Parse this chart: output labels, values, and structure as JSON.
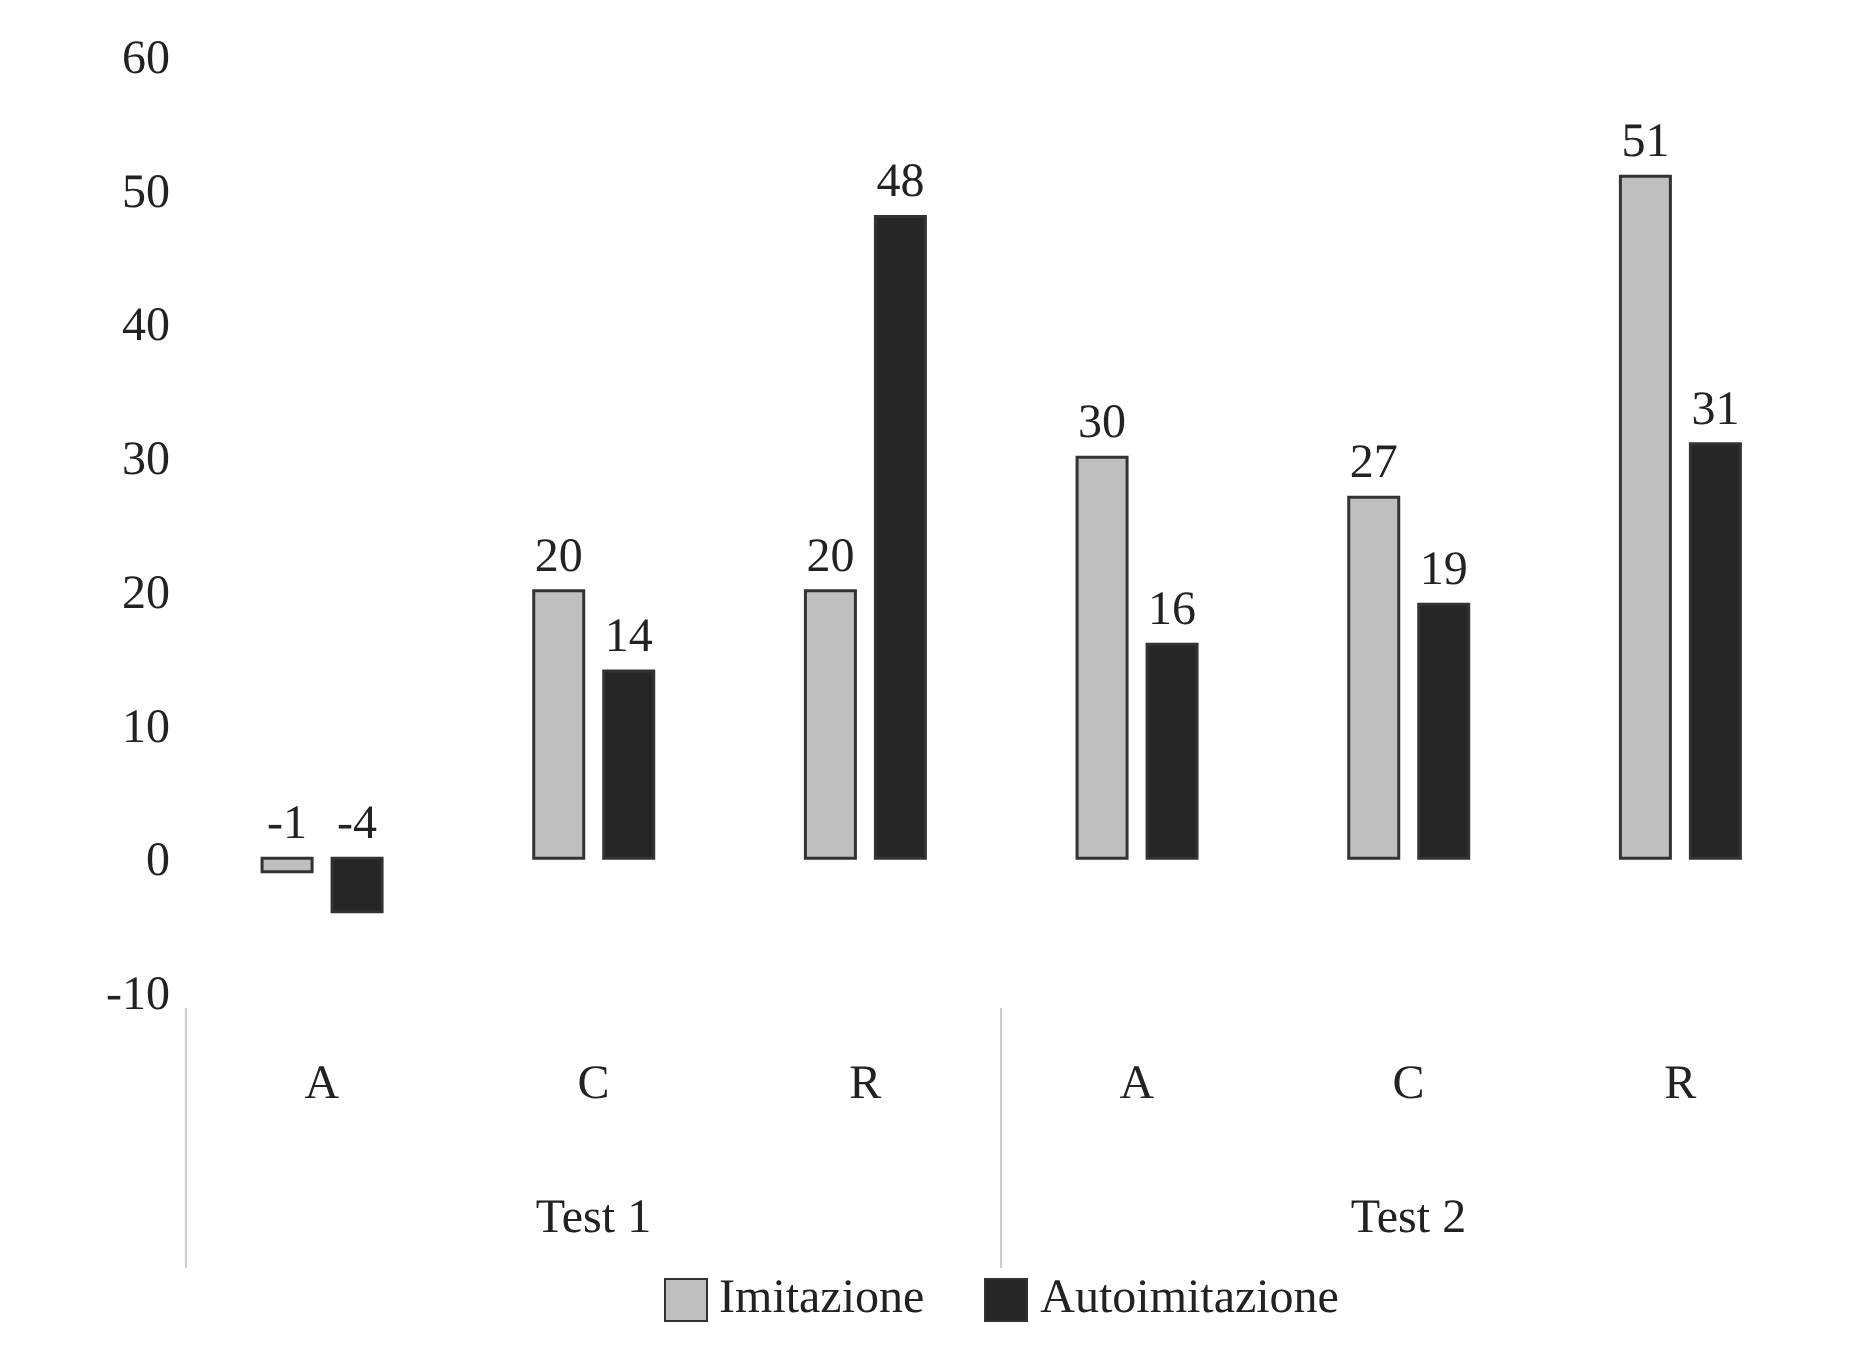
{
  "chart_data": {
    "type": "bar",
    "categories": [
      "A",
      "C",
      "R",
      "A",
      "C",
      "R"
    ],
    "series": [
      {
        "name": "Imitazione",
        "color": "#bfbfbf",
        "values": [
          -1,
          20,
          20,
          30,
          27,
          51
        ]
      },
      {
        "name": "Autoimitazione",
        "color": "#262626",
        "values": [
          -4,
          14,
          48,
          16,
          19,
          31
        ]
      }
    ],
    "ylim": [
      -10,
      60
    ],
    "yticks": [
      -10,
      0,
      10,
      20,
      30,
      40,
      50,
      60
    ],
    "legend": "bottom",
    "data_labels": true,
    "annotations": [
      "Test 1",
      "Test 2"
    ]
  }
}
